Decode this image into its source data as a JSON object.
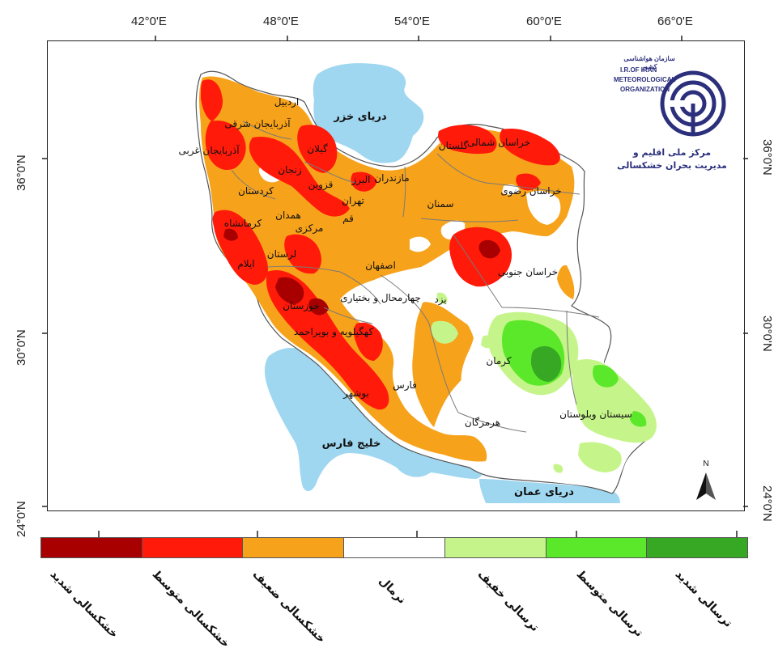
{
  "axes": {
    "top_longitudes": [
      "42°0'E",
      "48°0'E",
      "54°0'E",
      "60°0'E",
      "66°0'E"
    ],
    "left_latitudes": [
      "36°0'N",
      "30°0'N",
      "24°0'N"
    ],
    "right_latitudes": [
      "36°0'N",
      "30°0'N",
      "24°0'N"
    ]
  },
  "water_bodies": {
    "caspian": "دریای خزر",
    "persian_gulf": "خلیج فارس",
    "oman_sea": "دریای عمان"
  },
  "provinces": [
    "اردبیل",
    "آذربایجان شرقی",
    "آذربایجان غربی",
    "گیلان",
    "زنجان",
    "قزوین",
    "کردستان",
    "البرز",
    "مازندران",
    "تهران",
    "گلستان",
    "خراسان شمالی",
    "خراسان رضوی",
    "سمنان",
    "همدان",
    "قم",
    "کرمانشاه",
    "مرکزی",
    "لرستان",
    "ایلام",
    "اصفهان",
    "خراسان جنوبی",
    "خوزستان",
    "چهارمحال و بختیاری",
    "یزد",
    "کهگیلویه و بویراحمد",
    "کرمان",
    "بوشهر",
    "فارس",
    "سیستان وبلوستان",
    "هرمزگان"
  ],
  "logo": {
    "fa_top": "سازمان هواشناسی کشور",
    "line1": "I.R.OF IRAN",
    "line2": "METEOROLOGICAL",
    "line3": "ORGANIZATION",
    "fa_line1": "مرکز ملی اقلیم و",
    "fa_line2": "مدیریت بحران خشکسالی"
  },
  "north_arrow": "N",
  "legend": [
    {
      "label": "خشکسالی شدید",
      "color": "#a80000"
    },
    {
      "label": "خشکسالی متوسط",
      "color": "#ff1a0a"
    },
    {
      "label": "خشکسالی ضعیف",
      "color": "#f7a21b"
    },
    {
      "label": "نرمال",
      "color": "#ffffff"
    },
    {
      "label": "ترسالی خفیف",
      "color": "#c5f58a"
    },
    {
      "label": "ترسالی متوسط",
      "color": "#5ce82a"
    },
    {
      "label": "ترسالی شدید",
      "color": "#37a823"
    }
  ],
  "colors": {
    "water": "#9fd7f0",
    "normal": "#ffffff",
    "weak_drought": "#f7a21b",
    "moderate_drought": "#ff1a0a",
    "severe_drought": "#a80000",
    "light_wet": "#c5f58a",
    "moderate_wet": "#5ce82a",
    "severe_wet": "#37a823",
    "border": "#7a7a7a",
    "logo_blue": "#2b2f7c"
  }
}
